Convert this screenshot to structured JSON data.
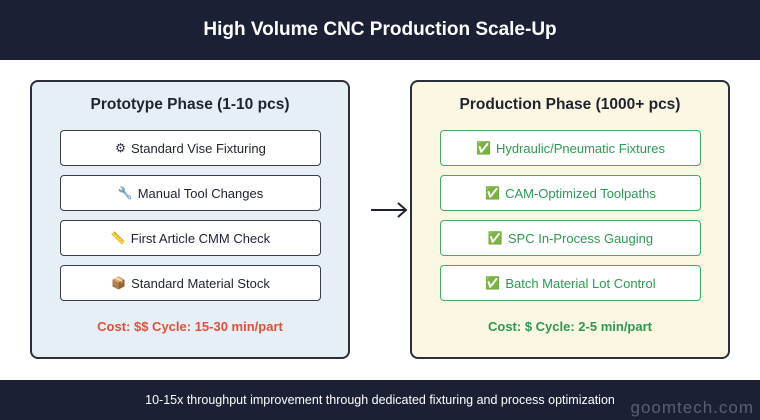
{
  "header": {
    "title": "High Volume CNC Production Scale-Up"
  },
  "prototype": {
    "title": "Prototype Phase (1-10 pcs)",
    "items": [
      {
        "icon": "⚙",
        "icon_name": "gear-icon",
        "label": "Standard Vise Fixturing"
      },
      {
        "icon": "🔧",
        "icon_name": "wrench-icon",
        "label": "Manual Tool Changes"
      },
      {
        "icon": "📏",
        "icon_name": "ruler-icon",
        "label": "First Article CMM Check"
      },
      {
        "icon": "📦",
        "icon_name": "package-icon",
        "label": "Standard Material Stock"
      }
    ],
    "cost": "Cost: $$ Cycle: 15-30 min/part",
    "accent_color": "#e0503c"
  },
  "production": {
    "title": "Production Phase (1000+ pcs)",
    "items": [
      {
        "icon": "✅",
        "icon_name": "check-icon",
        "label": "Hydraulic/Pneumatic Fixtures"
      },
      {
        "icon": "✅",
        "icon_name": "check-icon",
        "label": "CAM-Optimized Toolpaths"
      },
      {
        "icon": "✅",
        "icon_name": "check-icon",
        "label": "SPC In-Process Gauging"
      },
      {
        "icon": "✅",
        "icon_name": "check-icon",
        "label": "Batch Material Lot Control"
      }
    ],
    "cost": "Cost: $ Cycle: 2-5 min/part",
    "accent_color": "#2c9a52"
  },
  "arrow": {
    "icon_name": "arrow-right-icon"
  },
  "footer": {
    "text": "10-15x throughput improvement through dedicated fixturing and process optimization"
  },
  "watermark": {
    "text": "goomtech.com"
  }
}
